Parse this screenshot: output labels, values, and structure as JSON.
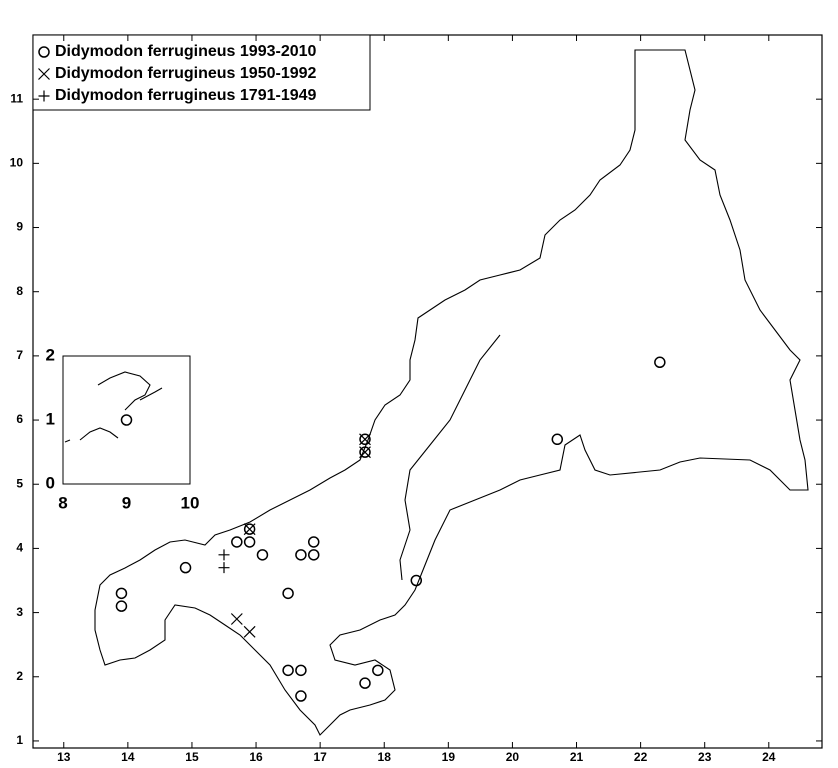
{
  "chart_data": [
    {
      "type": "scatter",
      "series": [
        {
          "name": "Didymodon ferrugineus 1993-2010",
          "marker": "circle",
          "color": "#000000",
          "x": [
            13.9,
            13.9,
            14.9,
            15.7,
            15.9,
            15.9,
            16.1,
            16.5,
            16.7,
            16.9,
            16.9,
            16.5,
            16.7,
            16.7,
            17.7,
            17.9,
            17.7,
            17.7,
            18.5,
            20.7,
            22.3
          ],
          "y": [
            3.3,
            3.1,
            3.7,
            4.1,
            4.1,
            4.3,
            3.9,
            3.3,
            3.9,
            3.9,
            4.1,
            2.1,
            2.1,
            1.7,
            1.9,
            2.1,
            5.7,
            5.5,
            3.5,
            5.7,
            6.9
          ]
        },
        {
          "name": "Didymodon ferrugineus 1950-1992",
          "marker": "x",
          "color": "#000000",
          "x": [
            15.9,
            17.7,
            17.7,
            15.7,
            15.9
          ],
          "y": [
            4.3,
            5.7,
            5.5,
            2.9,
            2.7
          ]
        },
        {
          "name": "Didymodon ferrugineus 1791-1949",
          "marker": "plus",
          "color": "#000000",
          "x": [
            15.5,
            15.5
          ],
          "y": [
            3.9,
            3.7
          ]
        }
      ],
      "xlim": [
        12.52,
        24.83
      ],
      "ylim": [
        0.89,
        12
      ],
      "xticks": [
        13,
        14,
        15,
        16,
        17,
        18,
        19,
        20,
        21,
        22,
        23,
        24
      ],
      "yticks": [
        1,
        2,
        3,
        4,
        5,
        6,
        7,
        8,
        9,
        10,
        11
      ]
    },
    {
      "type": "scatter",
      "series": [
        {
          "marker": "circle",
          "color": "#000000",
          "x": [
            9
          ],
          "y": [
            1
          ]
        }
      ],
      "xlim": [
        8,
        10
      ],
      "ylim": [
        0,
        2
      ],
      "xticks": [
        8,
        9,
        10
      ],
      "yticks": [
        0,
        1,
        2
      ]
    }
  ]
}
